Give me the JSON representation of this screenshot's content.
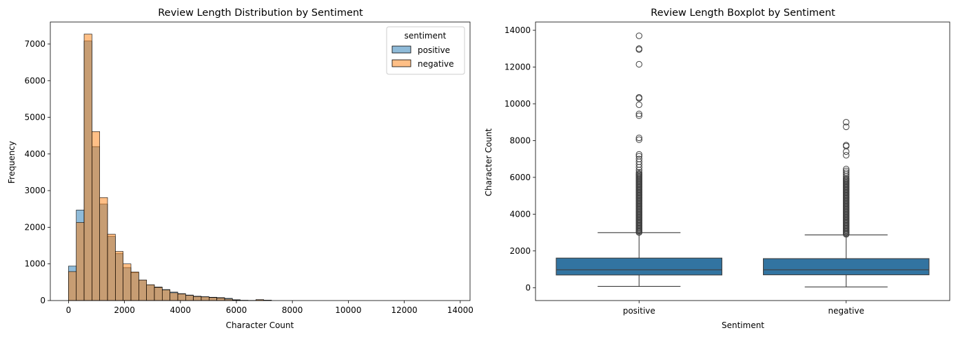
{
  "chart_data": [
    {
      "type": "bar",
      "subtype": "overlaid-histogram",
      "title": "Review Length Distribution by Sentiment",
      "xlabel": "Character Count",
      "ylabel": "Frequency",
      "xlim": [
        -650,
        14350
      ],
      "ylim": [
        0,
        7600
      ],
      "xticks": [
        0,
        2000,
        4000,
        6000,
        8000,
        10000,
        12000,
        14000
      ],
      "yticks": [
        0,
        1000,
        2000,
        3000,
        4000,
        5000,
        6000,
        7000
      ],
      "bin_width": 279,
      "bin_start": 0,
      "legend": {
        "title": "sentiment",
        "position": "top-right"
      },
      "series": [
        {
          "name": "positive",
          "color": "#1f77b4",
          "values": [
            940,
            2470,
            7080,
            4200,
            2630,
            1750,
            1280,
            900,
            760,
            560,
            430,
            370,
            300,
            230,
            190,
            150,
            120,
            105,
            90,
            80,
            60,
            22,
            8,
            5,
            20,
            10
          ]
        },
        {
          "name": "negative",
          "color": "#ff7f0e",
          "values": [
            790,
            2130,
            7270,
            4610,
            2810,
            1810,
            1340,
            1000,
            780,
            560,
            430,
            360,
            290,
            210,
            180,
            140,
            110,
            100,
            80,
            70,
            40,
            15,
            5,
            3,
            25,
            8
          ]
        }
      ],
      "overlap_color": "#8c979b"
    },
    {
      "type": "boxplot",
      "title": "Review Length Boxplot by Sentiment",
      "xlabel": "Sentiment",
      "ylabel": "Character Count",
      "categories": [
        "positive",
        "negative"
      ],
      "ylim": [
        -700,
        14450
      ],
      "yticks": [
        0,
        2000,
        4000,
        6000,
        8000,
        10000,
        12000,
        14000
      ],
      "box_color": "#3274a1",
      "boxes": [
        {
          "name": "positive",
          "min": 70,
          "q1": 690,
          "median": 970,
          "q3": 1610,
          "whisker_high": 2990,
          "outliers": [
            3000,
            3050,
            3100,
            3150,
            3200,
            3250,
            3300,
            3350,
            3400,
            3450,
            3500,
            3550,
            3600,
            3650,
            3700,
            3750,
            3800,
            3850,
            3900,
            3950,
            4000,
            4050,
            4100,
            4150,
            4200,
            4250,
            4300,
            4350,
            4400,
            4450,
            4500,
            4550,
            4600,
            4650,
            4700,
            4750,
            4800,
            4850,
            4900,
            4950,
            5000,
            5050,
            5100,
            5150,
            5200,
            5250,
            5300,
            5350,
            5400,
            5450,
            5500,
            5550,
            5600,
            5650,
            5700,
            5750,
            5800,
            5850,
            5900,
            5950,
            6000,
            6050,
            6100,
            6150,
            6200,
            6280,
            6400,
            6550,
            6700,
            6850,
            7000,
            7150,
            7250,
            8050,
            8150,
            9350,
            9450,
            9950,
            10300,
            10350,
            12150,
            12950,
            13000,
            13700
          ]
        },
        {
          "name": "negative",
          "min": 40,
          "q1": 700,
          "median": 970,
          "q3": 1580,
          "whisker_high": 2870,
          "outliers": [
            2900,
            2950,
            3000,
            3050,
            3100,
            3150,
            3200,
            3250,
            3300,
            3350,
            3400,
            3450,
            3500,
            3550,
            3600,
            3650,
            3700,
            3750,
            3800,
            3850,
            3900,
            3950,
            4000,
            4050,
            4100,
            4150,
            4200,
            4250,
            4300,
            4350,
            4400,
            4450,
            4500,
            4550,
            4600,
            4650,
            4700,
            4750,
            4800,
            4850,
            4900,
            4950,
            5000,
            5050,
            5100,
            5150,
            5200,
            5250,
            5300,
            5350,
            5400,
            5450,
            5500,
            5550,
            5600,
            5650,
            5700,
            5750,
            5800,
            5850,
            5900,
            5950,
            6050,
            6150,
            6250,
            6350,
            6450,
            7200,
            7400,
            7700,
            7750,
            8750,
            9000
          ]
        }
      ]
    }
  ]
}
